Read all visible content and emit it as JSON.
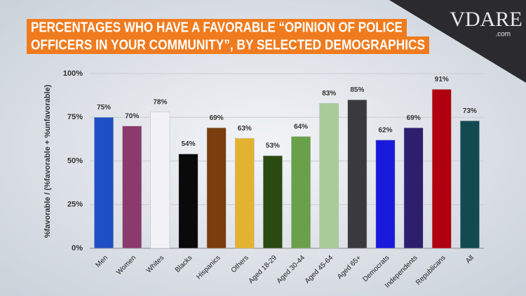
{
  "chart_data": {
    "type": "bar",
    "title": [
      "PERCENTAGES WHO HAVE A FAVORABLE “OPINION OF POLICE",
      "OFFICERS IN YOUR COMMUNITY”, BY SELECTED DEMOGRAPHICS"
    ],
    "y_label": "%favorable / (%favorable + %unfavorable)",
    "categories": [
      "Men",
      "Women",
      "Whites",
      "Blacks",
      "Hispanics",
      "Others",
      "Aged 18-29",
      "Aged 30-44",
      "Aged 45-64",
      "Aged 65+",
      "Democrats",
      "Independents",
      "Republicans",
      "All"
    ],
    "values": [
      75,
      70,
      78,
      54,
      69,
      63,
      53,
      64,
      83,
      85,
      62,
      69,
      91,
      73
    ],
    "value_labels": [
      "75%",
      "70%",
      "78%",
      "54%",
      "69%",
      "63%",
      "53%",
      "64%",
      "83%",
      "85%",
      "62%",
      "69%",
      "91%",
      "73%"
    ],
    "colors": [
      "#1f4fc4",
      "#8b3a6e",
      "#f2f2f6",
      "#0a0a0a",
      "#7a3e0e",
      "#e2b232",
      "#2a4a12",
      "#6aa04a",
      "#a8cc98",
      "#3a3a3e",
      "#1a1adc",
      "#2e1f6e",
      "#b00010",
      "#124a52"
    ],
    "ylim": [
      0,
      100
    ],
    "yticks": [
      {
        "value": 0,
        "label": "0%"
      },
      {
        "value": 25,
        "label": "25%"
      },
      {
        "value": 50,
        "label": "50%"
      },
      {
        "value": 75,
        "label": "75%"
      },
      {
        "value": 100,
        "label": "100%"
      }
    ],
    "grid": true
  },
  "logo": {
    "name": "VDARE",
    "domain": ".com"
  }
}
